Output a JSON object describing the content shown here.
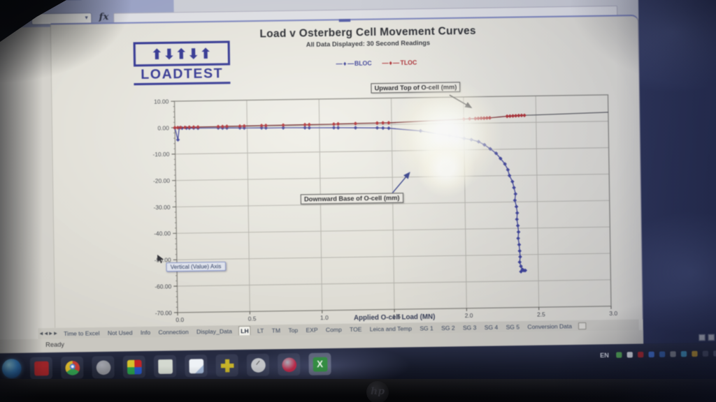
{
  "laptop": {
    "brand_logo": "hp"
  },
  "excel": {
    "formula_bar": {
      "name_box_value": "",
      "fx_label": "fx"
    },
    "status_bar": {
      "ready_label": "Ready"
    },
    "tab_nav": [
      {
        "name": "first-tab-button",
        "glyph": "◀"
      },
      {
        "name": "prev-tab-button",
        "glyph": "◀"
      },
      {
        "name": "next-tab-button",
        "glyph": "▶"
      },
      {
        "name": "last-tab-button",
        "glyph": "▶"
      }
    ],
    "sheet_tabs": [
      "Time to Excel",
      "Not Used",
      "Info",
      "Connection",
      "Display_Data",
      "LH",
      "LT",
      "TM",
      "Top",
      "EXP",
      "Comp",
      "TOE",
      "Leica and Temp",
      "SG 1",
      "SG 2",
      "SG 3",
      "SG 4",
      "SG 5",
      "Conversion Data"
    ],
    "active_tab": "LH",
    "view_buttons": [
      "normal-view-button",
      "page-layout-view-button",
      "page-break-preview-button"
    ]
  },
  "logo": {
    "brand": "LOADTEST",
    "arrow_directions": [
      "up",
      "down",
      "up",
      "down",
      "up"
    ]
  },
  "chart_data": {
    "type": "line",
    "title": "Load v Osterberg Cell Movement Curves",
    "subtitle": "All Data Displayed:  30 Second Readings",
    "xlabel": "Applied O-cell Load (MN)",
    "axis_tooltip": "Vertical (Value) Axis",
    "xlim": [
      0,
      3.0
    ],
    "ylim": [
      -70,
      10
    ],
    "x_ticks": [
      "0.0",
      "0.5",
      "1.0",
      "1.5",
      "2.0",
      "2.5",
      "3.0"
    ],
    "y_ticks": [
      "10.00",
      "0.00",
      "-10.00",
      "-20.00",
      "-30.00",
      "-40.00",
      "-50.00",
      "-60.00",
      "-70.00"
    ],
    "grid": true,
    "legend_position": "top",
    "annotations": {
      "upward": "Upward Top of O-cell (mm)",
      "downward": "Downward Base of O-cell (mm)"
    },
    "series": [
      {
        "name": "BLOC",
        "color": "#383d9c",
        "points": [
          [
            0.0,
            -0.1
          ],
          [
            0.02,
            -4.6
          ],
          [
            0.03,
            -0.15
          ],
          [
            0.05,
            -0.2
          ],
          [
            0.08,
            -0.2
          ],
          [
            0.1,
            -0.25
          ],
          [
            0.13,
            -0.25
          ],
          [
            0.16,
            -0.3
          ],
          [
            0.3,
            -0.35
          ],
          [
            0.33,
            -0.4
          ],
          [
            0.36,
            -0.4
          ],
          [
            0.45,
            -0.45
          ],
          [
            0.48,
            -0.5
          ],
          [
            0.6,
            -0.55
          ],
          [
            0.63,
            -0.6
          ],
          [
            0.75,
            -0.65
          ],
          [
            0.9,
            -0.75
          ],
          [
            0.93,
            -0.8
          ],
          [
            1.1,
            -0.9
          ],
          [
            1.13,
            -0.95
          ],
          [
            1.25,
            -1.05
          ],
          [
            1.4,
            -1.2
          ],
          [
            1.44,
            -1.3
          ],
          [
            1.48,
            -1.4
          ],
          [
            1.7,
            -2.6
          ],
          [
            1.9,
            -4.6
          ],
          [
            1.95,
            -5.1
          ],
          [
            2.0,
            -5.7
          ],
          [
            2.05,
            -6.2
          ],
          [
            2.1,
            -7.0
          ],
          [
            2.14,
            -8.2
          ],
          [
            2.18,
            -9.8
          ],
          [
            2.22,
            -11.5
          ],
          [
            2.25,
            -13.5
          ],
          [
            2.28,
            -15.6
          ],
          [
            2.3,
            -17.8
          ],
          [
            2.31,
            -20.0
          ],
          [
            2.33,
            -22.3
          ],
          [
            2.34,
            -24.6
          ],
          [
            2.35,
            -27.0
          ],
          [
            2.345,
            -29.4
          ],
          [
            2.355,
            -31.8
          ],
          [
            2.36,
            -34.2
          ],
          [
            2.357,
            -36.6
          ],
          [
            2.363,
            -39.0
          ],
          [
            2.367,
            -41.4
          ],
          [
            2.364,
            -43.8
          ],
          [
            2.37,
            -46.2
          ],
          [
            2.373,
            -48.6
          ],
          [
            2.376,
            -50.8
          ],
          [
            2.372,
            -52.8
          ],
          [
            2.38,
            -54.4
          ],
          [
            2.39,
            -55.6
          ],
          [
            2.41,
            -56.0
          ],
          [
            2.38,
            -56.4
          ],
          [
            2.4,
            -56.0
          ]
        ]
      },
      {
        "name": "TLOC",
        "color": "#b3242a",
        "line_color": "#6e1a1e",
        "extend": [
          3.0,
          3.4
        ],
        "points": [
          [
            0.0,
            0.0
          ],
          [
            0.02,
            0.0
          ],
          [
            0.04,
            0.05
          ],
          [
            0.07,
            0.05
          ],
          [
            0.1,
            0.1
          ],
          [
            0.13,
            0.1
          ],
          [
            0.16,
            0.1
          ],
          [
            0.3,
            0.15
          ],
          [
            0.33,
            0.15
          ],
          [
            0.36,
            0.2
          ],
          [
            0.45,
            0.2
          ],
          [
            0.48,
            0.25
          ],
          [
            0.6,
            0.3
          ],
          [
            0.63,
            0.3
          ],
          [
            0.75,
            0.35
          ],
          [
            0.9,
            0.4
          ],
          [
            0.93,
            0.4
          ],
          [
            1.1,
            0.45
          ],
          [
            1.13,
            0.5
          ],
          [
            1.25,
            0.55
          ],
          [
            1.4,
            0.6
          ],
          [
            1.44,
            0.65
          ],
          [
            1.48,
            0.65
          ],
          [
            2.0,
            1.6
          ],
          [
            2.04,
            1.7
          ],
          [
            2.08,
            1.75
          ],
          [
            2.1,
            1.8
          ],
          [
            2.12,
            1.85
          ],
          [
            2.14,
            1.85
          ],
          [
            2.16,
            1.9
          ],
          [
            2.18,
            1.95
          ],
          [
            2.3,
            2.45
          ],
          [
            2.32,
            2.5
          ],
          [
            2.34,
            2.55
          ],
          [
            2.36,
            2.6
          ],
          [
            2.38,
            2.65
          ],
          [
            2.4,
            2.7
          ],
          [
            2.42,
            2.7
          ]
        ]
      }
    ]
  },
  "taskbar": {
    "language_indicator": "EN",
    "icons": [
      {
        "name": "adobe-reader-icon",
        "kind": "sq",
        "c1": "#a32125"
      },
      {
        "name": "chrome-icon",
        "kind": "chrome",
        "c1": "#cc3a2f"
      },
      {
        "name": "gray-app-icon",
        "kind": "circ",
        "c1": "#8d8f96"
      },
      {
        "name": "media-colors-icon",
        "kind": "quad",
        "c1": "#cc2222"
      },
      {
        "name": "folder-icon",
        "kind": "folder",
        "c1": "#d4d9cf"
      },
      {
        "name": "notes-icon",
        "kind": "note",
        "c1": "#dde4ea"
      },
      {
        "name": "yellow-cross-icon",
        "kind": "plus",
        "c1": "#c9b41e"
      },
      {
        "name": "clock-icon",
        "kind": "clock",
        "c1": "#c2c4c8"
      },
      {
        "name": "itunes-icon",
        "kind": "circ2",
        "c1": "#c22547"
      },
      {
        "name": "excel-icon",
        "kind": "x",
        "c1": "#2e8f3e"
      }
    ],
    "tray_icons": [
      {
        "name": "tray-green-icon",
        "c": "#4aa34a"
      },
      {
        "name": "tray-arrow-icon",
        "c": "#d8dce2"
      },
      {
        "name": "tray-adobe-icon",
        "c": "#b32025"
      },
      {
        "name": "tray-blue-icon",
        "c": "#3a6fd8"
      },
      {
        "name": "tray-square-icon",
        "c": "#2f5fb0"
      },
      {
        "name": "tray-gray-icon",
        "c": "#85888f"
      },
      {
        "name": "tray-lightblue-icon",
        "c": "#3aa0d0"
      },
      {
        "name": "tray-lock-icon",
        "c": "#d8a51f"
      },
      {
        "name": "tray-dim1-icon",
        "c": "#4a4f66"
      },
      {
        "name": "tray-dim2-icon",
        "c": "#5a6078"
      }
    ]
  }
}
